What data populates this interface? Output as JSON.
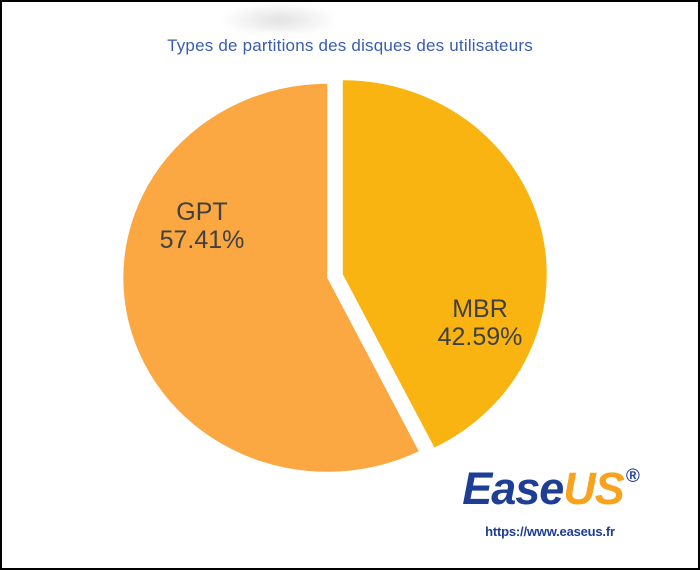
{
  "chart_data": {
    "type": "pie",
    "title": "Types de partitions des disques des utilisateurs",
    "categories": [
      "GPT",
      "MBR"
    ],
    "values": [
      57.41,
      42.59
    ],
    "value_labels": [
      "57.41%",
      "42.59%"
    ],
    "colors": [
      "#FBA742",
      "#F9B411"
    ],
    "label_color": "#404040",
    "title_color": "#3A5DB0",
    "start_angle_deg": 153.324,
    "direction": "clockwise",
    "exploded": true,
    "legend": "none"
  },
  "logo": {
    "text_ease": "Ease",
    "text_us": "US",
    "registered": "®",
    "url": "https://www.easeus.fr",
    "color_blue": "#1D3E94",
    "color_orange": "#F9A21D"
  }
}
